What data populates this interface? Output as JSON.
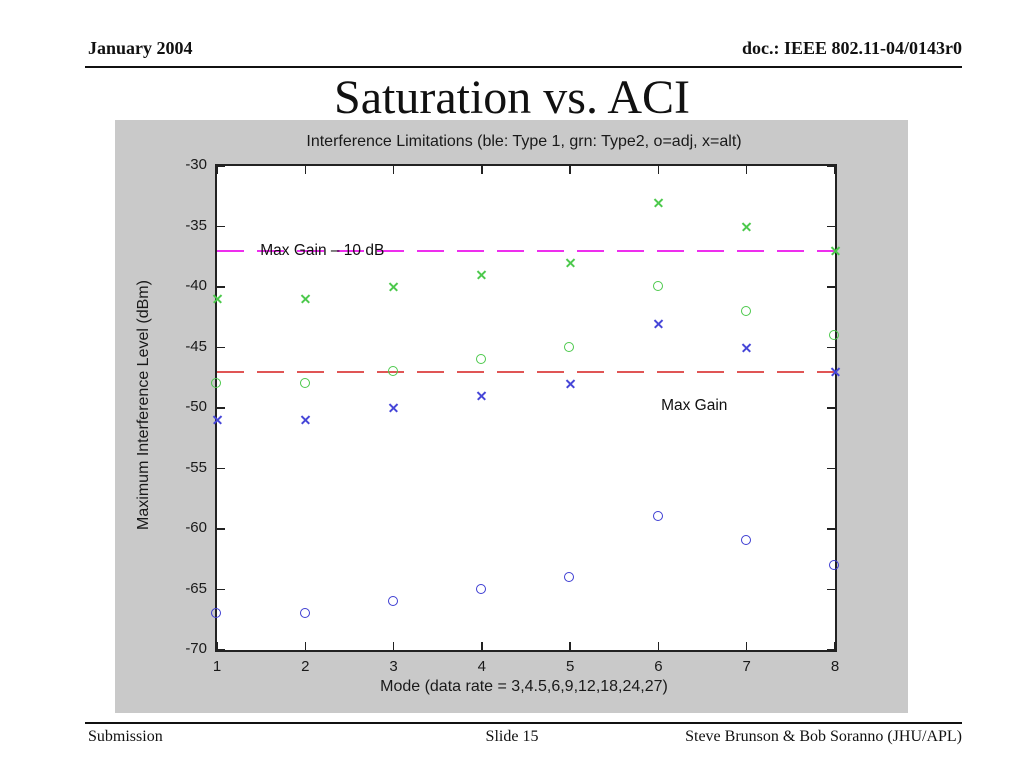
{
  "slide": {
    "header_left": "January 2004",
    "header_right": "doc.: IEEE 802.11-04/0143r0",
    "title": "Saturation vs. ACI",
    "footer_left": "Submission",
    "footer_center": "Slide 15",
    "footer_right": "Steve Brunson & Bob Soranno (JHU/APL)"
  },
  "chart_data": {
    "type": "scatter",
    "title": "Interference Limitations (ble: Type 1, grn: Type2, o=adj, x=alt)",
    "xlabel": "Mode (data rate = 3,4.5,6,9,12,18,24,27)",
    "ylabel": "Maximum Interference Level (dBm)",
    "xlim": [
      1,
      8
    ],
    "ylim": [
      -70,
      -30
    ],
    "xticks": [
      1,
      2,
      3,
      4,
      5,
      6,
      7,
      8
    ],
    "yticks": [
      -30,
      -35,
      -40,
      -45,
      -50,
      -55,
      -60,
      -65,
      -70
    ],
    "grid": false,
    "legend": false,
    "x": [
      1,
      2,
      3,
      4,
      5,
      6,
      7,
      8
    ],
    "series": [
      {
        "name": "Type 1 adjacent (blue o)",
        "marker": "o",
        "color": "#3d3dd2",
        "values": [
          -67,
          -67,
          -66,
          -65,
          -64,
          -59,
          -61,
          -63
        ]
      },
      {
        "name": "Type 1 alternate (blue x)",
        "marker": "x",
        "color": "#4646d8",
        "values": [
          -51,
          -51,
          -50,
          -49,
          -48,
          -43,
          -45,
          -47
        ]
      },
      {
        "name": "Type 2 adjacent (green o)",
        "marker": "o",
        "color": "#4cc94c",
        "values": [
          -48,
          -48,
          -47,
          -46,
          -45,
          -40,
          -42,
          -44
        ]
      },
      {
        "name": "Type 2 alternate (green x)",
        "marker": "x",
        "color": "#4cc94c",
        "values": [
          -41,
          -41,
          -40,
          -39,
          -38,
          -33,
          -35,
          -37
        ]
      }
    ],
    "reference_lines": [
      {
        "label": "Max Gain – 10 dB",
        "value": -37,
        "color": "#ee2eee",
        "style": "long-dash",
        "label_x_mode": 1.49,
        "label_dbm": -37
      },
      {
        "label": "Max Gain",
        "value": -47,
        "color": "#e05555",
        "style": "long-dash",
        "label_x_mode": 6.03,
        "label_dbm": -49.8
      }
    ]
  }
}
